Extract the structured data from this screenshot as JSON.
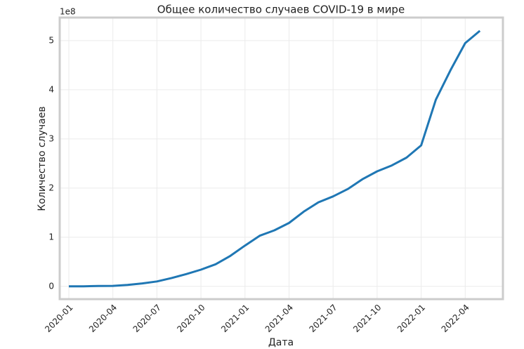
{
  "chart_data": {
    "type": "line",
    "title": "Общее количество случаев COVID-19 в мире",
    "x_label": "Дата",
    "y_label": "Количество случаев",
    "y_offset_label": "1e8",
    "x": [
      "2020-01",
      "2020-02",
      "2020-03",
      "2020-04",
      "2020-05",
      "2020-06",
      "2020-07",
      "2020-08",
      "2020-09",
      "2020-10",
      "2020-11",
      "2020-12",
      "2021-01",
      "2021-02",
      "2021-03",
      "2021-04",
      "2021-05",
      "2021-06",
      "2021-07",
      "2021-08",
      "2021-09",
      "2021-10",
      "2021-11",
      "2021-12",
      "2022-01",
      "2022-02",
      "2022-03",
      "2022-04",
      "2022-05"
    ],
    "series": [
      {
        "name": "Количество случаев",
        "color": "#1f77b4",
        "values": [
          0,
          0.001,
          0.008,
          0.01,
          0.03,
          0.06,
          0.1,
          0.17,
          0.25,
          0.34,
          0.45,
          0.62,
          0.83,
          1.03,
          1.14,
          1.29,
          1.52,
          1.71,
          1.83,
          1.98,
          2.18,
          2.34,
          2.46,
          2.62,
          2.87,
          3.8,
          4.4,
          4.95,
          5.2
        ]
      }
    ],
    "xticks": [
      "2020-01",
      "2020-04",
      "2020-07",
      "2020-10",
      "2021-01",
      "2021-04",
      "2021-07",
      "2021-10",
      "2022-01",
      "2022-04"
    ],
    "ylim": [
      -0.26,
      5.47
    ],
    "yticks": [
      0,
      1,
      2,
      3,
      4,
      5
    ],
    "grid": true
  }
}
